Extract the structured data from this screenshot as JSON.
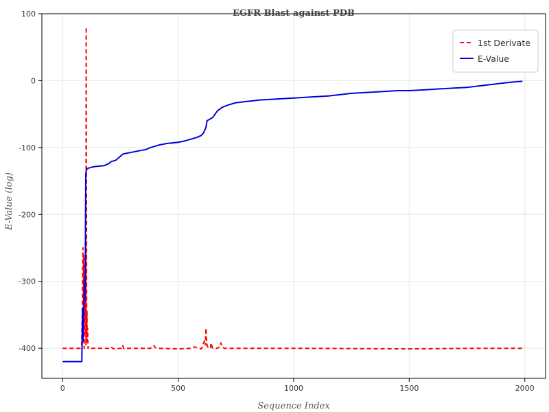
{
  "chart_data": {
    "type": "line",
    "title": "EGFR Blast against PDB",
    "xlabel": "Sequence Index",
    "ylabel": "E-Value (log)",
    "xlim": [
      -90,
      2090
    ],
    "ylim": [
      -445,
      100
    ],
    "xticks": [
      0,
      500,
      1000,
      1500,
      2000
    ],
    "xtick_labels": [
      "0",
      "500",
      "1000",
      "1500",
      "2000"
    ],
    "yticks": [
      100,
      0,
      -100,
      -200,
      -300,
      -400
    ],
    "ytick_labels": [
      "100",
      "0",
      "-100",
      "-200",
      "-300",
      "-400"
    ],
    "grid": true,
    "legend_position": "top-right",
    "series": [
      {
        "name": "1st Derivate",
        "color": "#ff0000",
        "style": "dashed",
        "x": [
          0,
          75,
          82,
          85,
          88,
          90,
          91,
          93,
          95,
          97,
          99,
          100,
          101,
          102,
          104,
          105,
          106,
          108,
          110,
          112,
          115,
          125,
          200,
          210,
          220,
          255,
          260,
          265,
          270,
          290,
          380,
          390,
          395,
          400,
          410,
          500,
          560,
          570,
          580,
          600,
          605,
          610,
          615,
          618,
          620,
          622,
          625,
          630,
          640,
          642,
          645,
          650,
          670,
          680,
          685,
          690,
          700,
          720,
          1000,
          1500,
          1800,
          1990
        ],
        "y": [
          -400,
          -400,
          -398,
          -350,
          -250,
          -380,
          -260,
          -400,
          -340,
          -300,
          -380,
          -230,
          -395,
          80,
          -380,
          -345,
          -390,
          -370,
          -400,
          -398,
          -400,
          -400,
          -400,
          -398,
          -401,
          -400,
          -396,
          -401,
          -400,
          -400,
          -400,
          -398,
          -396,
          -399,
          -400,
          -401,
          -400,
          -398,
          -399,
          -401,
          -397,
          -392,
          -388,
          -395,
          -370,
          -385,
          -395,
          -400,
          -399,
          -392,
          -396,
          -400,
          -400,
          -398,
          -392,
          -398,
          -400,
          -400,
          -400,
          -401,
          -400,
          -400
        ]
      },
      {
        "name": "E-Value",
        "color": "#0000dd",
        "style": "solid",
        "x": [
          0,
          70,
          80,
          83,
          84,
          86,
          88,
          90,
          92,
          94,
          96,
          98,
          100,
          102,
          104,
          106,
          110,
          120,
          130,
          150,
          180,
          200,
          210,
          230,
          250,
          260,
          270,
          300,
          330,
          360,
          380,
          400,
          420,
          450,
          480,
          500,
          530,
          560,
          580,
          600,
          610,
          620,
          625,
          630,
          650,
          660,
          670,
          690,
          720,
          750,
          800,
          850,
          900,
          950,
          1000,
          1050,
          1100,
          1150,
          1200,
          1250,
          1300,
          1350,
          1400,
          1450,
          1500,
          1550,
          1600,
          1650,
          1700,
          1750,
          1800,
          1850,
          1900,
          1950,
          1990
        ],
        "y": [
          -420,
          -420,
          -420,
          -420,
          -395,
          -340,
          -390,
          -360,
          -340,
          -300,
          -330,
          -270,
          -140,
          -135,
          -133,
          -132,
          -131,
          -130,
          -129,
          -128,
          -127,
          -124,
          -121,
          -119,
          -113,
          -110,
          -109,
          -107,
          -105,
          -103,
          -100,
          -98,
          -96,
          -94,
          -93,
          -92,
          -90,
          -87,
          -85,
          -82,
          -78,
          -70,
          -60,
          -59,
          -55,
          -50,
          -45,
          -40,
          -36,
          -33,
          -31,
          -29,
          -28,
          -27,
          -26,
          -25,
          -24,
          -23,
          -21,
          -19,
          -18,
          -17,
          -16,
          -15,
          -15,
          -14,
          -13,
          -12,
          -11,
          -10,
          -8,
          -6,
          -4,
          -2,
          -1
        ]
      }
    ]
  }
}
